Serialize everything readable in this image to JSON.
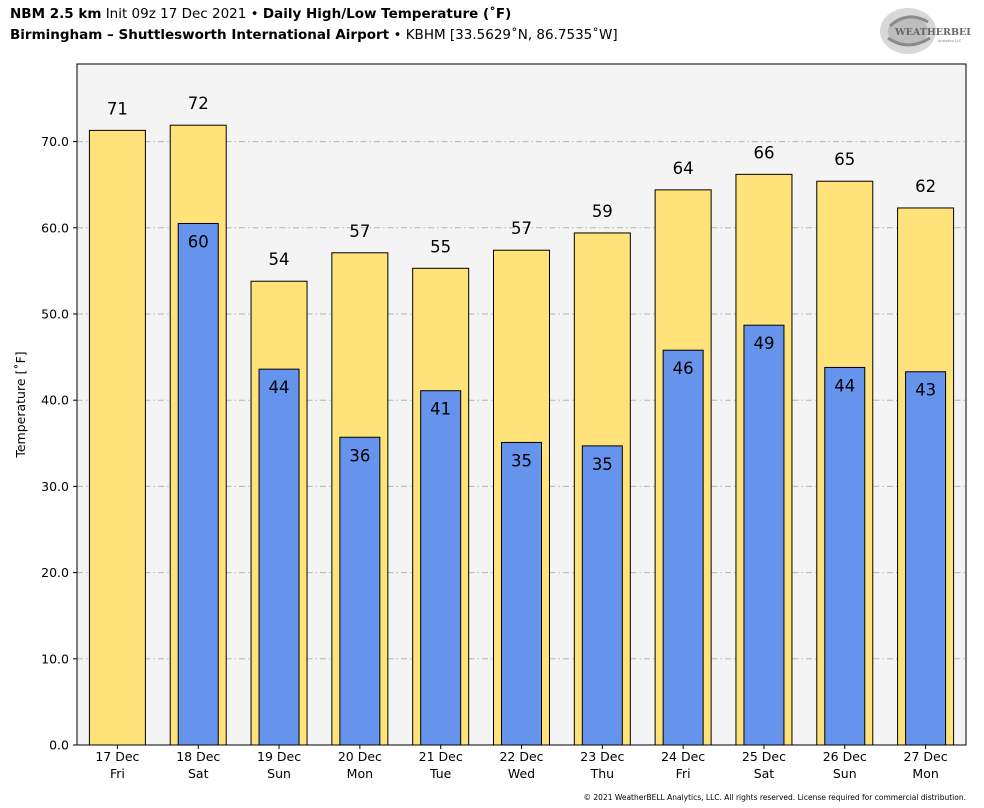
{
  "header": {
    "model": "NBM 2.5 km",
    "init": "Init 09z 17 Dec 2021",
    "sep": "•",
    "product": "Daily High/Low Temperature (˚F)",
    "location": "Birmingham – Shuttlesworth International Airport",
    "station": "KBHM [33.5629˚N, 86.7535˚W]"
  },
  "logo": {
    "text": "WEATHERBELL",
    "sub": "Analytics LLC"
  },
  "footer": {
    "copyright": "© 2021 WeatherBELL Analytics, LLC. All rights reserved. License required for commercial distribution."
  },
  "colors": {
    "high": "#ffe27a",
    "low": "#6693ec",
    "plot_bg": "#f4f4f4",
    "grid": "#b5b5b5"
  },
  "chart_data": {
    "type": "bar",
    "ylabel": "Temperature [˚F]",
    "ylim": [
      0,
      79
    ],
    "yticks": [
      0,
      10,
      20,
      30,
      40,
      50,
      60,
      70
    ],
    "ytick_labels": [
      "0.0",
      "10.0",
      "20.0",
      "30.0",
      "40.0",
      "50.0",
      "60.0",
      "70.0"
    ],
    "grid": true,
    "categories": [
      {
        "date": "17 Dec",
        "day": "Fri"
      },
      {
        "date": "18 Dec",
        "day": "Sat"
      },
      {
        "date": "19 Dec",
        "day": "Sun"
      },
      {
        "date": "20 Dec",
        "day": "Mon"
      },
      {
        "date": "21 Dec",
        "day": "Tue"
      },
      {
        "date": "22 Dec",
        "day": "Wed"
      },
      {
        "date": "23 Dec",
        "day": "Thu"
      },
      {
        "date": "24 Dec",
        "day": "Fri"
      },
      {
        "date": "25 Dec",
        "day": "Sat"
      },
      {
        "date": "26 Dec",
        "day": "Sun"
      },
      {
        "date": "27 Dec",
        "day": "Mon"
      }
    ],
    "series": [
      {
        "key": "high",
        "values": [
          71.3,
          71.9,
          53.8,
          57.1,
          55.3,
          57.4,
          59.4,
          64.4,
          66.2,
          65.4,
          62.3
        ],
        "labels": [
          "71",
          "72",
          "54",
          "57",
          "55",
          "57",
          "59",
          "64",
          "66",
          "65",
          "62"
        ]
      },
      {
        "key": "low",
        "values": [
          null,
          60.5,
          43.6,
          35.7,
          41.1,
          35.1,
          34.7,
          45.8,
          48.7,
          43.8,
          43.3
        ],
        "labels": [
          "",
          "60",
          "44",
          "36",
          "41",
          "35",
          "35",
          "46",
          "49",
          "44",
          "43"
        ]
      }
    ]
  }
}
